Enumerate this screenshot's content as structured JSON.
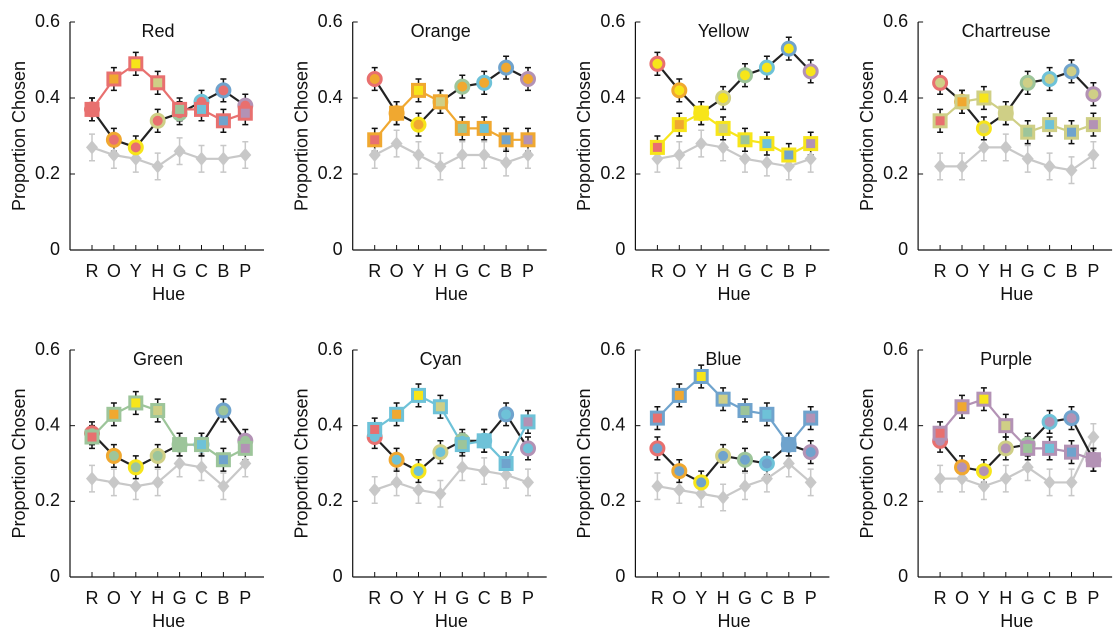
{
  "category_colors": [
    "#e8706f",
    "#f0a830",
    "#f7e51a",
    "#cfcf86",
    "#9dc59a",
    "#6ec2d8",
    "#6fa3cd",
    "#b392b5"
  ],
  "chart_data": [
    {
      "type": "line",
      "title": "Red",
      "xlabel": "Hue",
      "ylabel": "Proportion Chosen",
      "categories": [
        "R",
        "O",
        "Y",
        "H",
        "G",
        "C",
        "B",
        "P"
      ],
      "ylim": [
        0,
        0.6
      ],
      "yticks": [
        0,
        0.2,
        0.4,
        0.6
      ],
      "series": [
        {
          "marker": "diamond",
          "color": "#c8c8c8",
          "error": 0.035,
          "values": [
            0.27,
            0.25,
            0.24,
            0.22,
            0.26,
            0.24,
            0.24,
            0.25
          ]
        },
        {
          "marker": "circle",
          "color": "#222222",
          "error": 0.03,
          "values": [
            0.37,
            0.29,
            0.27,
            0.34,
            0.36,
            0.39,
            0.42,
            0.38
          ]
        },
        {
          "marker": "square",
          "color": "#e8706f",
          "error": 0.03,
          "values": [
            0.37,
            0.45,
            0.49,
            0.44,
            0.37,
            0.37,
            0.34,
            0.36
          ]
        }
      ]
    },
    {
      "type": "line",
      "title": "Orange",
      "xlabel": "Hue",
      "ylabel": "Proportion Chosen",
      "categories": [
        "R",
        "O",
        "Y",
        "H",
        "G",
        "C",
        "B",
        "P"
      ],
      "ylim": [
        0,
        0.6
      ],
      "yticks": [
        0,
        0.2,
        0.4,
        0.6
      ],
      "series": [
        {
          "marker": "diamond",
          "color": "#c8c8c8",
          "error": 0.035,
          "values": [
            0.25,
            0.28,
            0.25,
            0.22,
            0.25,
            0.25,
            0.23,
            0.25
          ]
        },
        {
          "marker": "circle",
          "color": "#222222",
          "error": 0.03,
          "values": [
            0.45,
            0.36,
            0.33,
            0.39,
            0.43,
            0.44,
            0.48,
            0.45
          ]
        },
        {
          "marker": "square",
          "color": "#f0a830",
          "error": 0.03,
          "values": [
            0.29,
            0.36,
            0.42,
            0.39,
            0.32,
            0.32,
            0.29,
            0.29
          ]
        }
      ]
    },
    {
      "type": "line",
      "title": "Yellow",
      "xlabel": "Hue",
      "ylabel": "Proportion Chosen",
      "categories": [
        "R",
        "O",
        "Y",
        "H",
        "G",
        "C",
        "B",
        "P"
      ],
      "ylim": [
        0,
        0.6
      ],
      "yticks": [
        0,
        0.2,
        0.4,
        0.6
      ],
      "series": [
        {
          "marker": "diamond",
          "color": "#c8c8c8",
          "error": 0.035,
          "values": [
            0.24,
            0.25,
            0.28,
            0.27,
            0.24,
            0.23,
            0.22,
            0.24
          ]
        },
        {
          "marker": "circle",
          "color": "#222222",
          "error": 0.03,
          "values": [
            0.49,
            0.42,
            0.36,
            0.4,
            0.46,
            0.48,
            0.53,
            0.47
          ]
        },
        {
          "marker": "square",
          "color": "#f7e51a",
          "error": 0.03,
          "values": [
            0.27,
            0.33,
            0.36,
            0.32,
            0.29,
            0.28,
            0.25,
            0.28
          ]
        }
      ]
    },
    {
      "type": "line",
      "title": "Chartreuse",
      "xlabel": "Hue",
      "ylabel": "Proportion Chosen",
      "categories": [
        "R",
        "O",
        "Y",
        "H",
        "G",
        "C",
        "B",
        "P"
      ],
      "ylim": [
        0,
        0.6
      ],
      "yticks": [
        0,
        0.2,
        0.4,
        0.6
      ],
      "series": [
        {
          "marker": "diamond",
          "color": "#c8c8c8",
          "error": 0.035,
          "values": [
            0.22,
            0.22,
            0.27,
            0.27,
            0.24,
            0.22,
            0.21,
            0.25
          ]
        },
        {
          "marker": "circle",
          "color": "#222222",
          "error": 0.03,
          "values": [
            0.44,
            0.39,
            0.32,
            0.36,
            0.44,
            0.45,
            0.47,
            0.41
          ]
        },
        {
          "marker": "square",
          "color": "#cfcf86",
          "error": 0.03,
          "values": [
            0.34,
            0.39,
            0.4,
            0.36,
            0.31,
            0.33,
            0.31,
            0.33
          ]
        }
      ]
    },
    {
      "type": "line",
      "title": "Green",
      "xlabel": "Hue",
      "ylabel": "Proportion Chosen",
      "categories": [
        "R",
        "O",
        "Y",
        "H",
        "G",
        "C",
        "B",
        "P"
      ],
      "ylim": [
        0,
        0.6
      ],
      "yticks": [
        0,
        0.2,
        0.4,
        0.6
      ],
      "series": [
        {
          "marker": "diamond",
          "color": "#c8c8c8",
          "error": 0.035,
          "values": [
            0.26,
            0.25,
            0.24,
            0.25,
            0.3,
            0.29,
            0.24,
            0.3
          ]
        },
        {
          "marker": "circle",
          "color": "#222222",
          "error": 0.03,
          "values": [
            0.38,
            0.32,
            0.29,
            0.32,
            0.35,
            0.35,
            0.44,
            0.36
          ]
        },
        {
          "marker": "square",
          "color": "#9dc59a",
          "error": 0.03,
          "values": [
            0.37,
            0.43,
            0.46,
            0.44,
            0.35,
            0.35,
            0.31,
            0.34
          ]
        }
      ]
    },
    {
      "type": "line",
      "title": "Cyan",
      "xlabel": "Hue",
      "ylabel": "Proportion Chosen",
      "categories": [
        "R",
        "O",
        "Y",
        "H",
        "G",
        "C",
        "B",
        "P"
      ],
      "ylim": [
        0,
        0.6
      ],
      "yticks": [
        0,
        0.2,
        0.4,
        0.6
      ],
      "series": [
        {
          "marker": "diamond",
          "color": "#c8c8c8",
          "error": 0.035,
          "values": [
            0.23,
            0.25,
            0.23,
            0.22,
            0.29,
            0.28,
            0.27,
            0.25
          ]
        },
        {
          "marker": "circle",
          "color": "#222222",
          "error": 0.03,
          "values": [
            0.37,
            0.31,
            0.28,
            0.33,
            0.36,
            0.36,
            0.43,
            0.34
          ]
        },
        {
          "marker": "square",
          "color": "#6ec2d8",
          "error": 0.03,
          "values": [
            0.39,
            0.43,
            0.48,
            0.45,
            0.35,
            0.36,
            0.3,
            0.41
          ]
        }
      ]
    },
    {
      "type": "line",
      "title": "Blue",
      "xlabel": "Hue",
      "ylabel": "Proportion Chosen",
      "categories": [
        "R",
        "O",
        "Y",
        "H",
        "G",
        "C",
        "B",
        "P"
      ],
      "ylim": [
        0,
        0.6
      ],
      "yticks": [
        0,
        0.2,
        0.4,
        0.6
      ],
      "series": [
        {
          "marker": "diamond",
          "color": "#c8c8c8",
          "error": 0.035,
          "values": [
            0.24,
            0.23,
            0.22,
            0.21,
            0.24,
            0.26,
            0.3,
            0.25
          ]
        },
        {
          "marker": "circle",
          "color": "#222222",
          "error": 0.03,
          "values": [
            0.34,
            0.28,
            0.25,
            0.32,
            0.31,
            0.3,
            0.35,
            0.33
          ]
        },
        {
          "marker": "square",
          "color": "#6fa3cd",
          "error": 0.03,
          "values": [
            0.42,
            0.48,
            0.53,
            0.47,
            0.44,
            0.43,
            0.35,
            0.42
          ]
        }
      ]
    },
    {
      "type": "line",
      "title": "Purple",
      "xlabel": "Hue",
      "ylabel": "Proportion Chosen",
      "categories": [
        "R",
        "O",
        "Y",
        "H",
        "G",
        "C",
        "B",
        "P"
      ],
      "ylim": [
        0,
        0.6
      ],
      "yticks": [
        0,
        0.2,
        0.4,
        0.6
      ],
      "series": [
        {
          "marker": "diamond",
          "color": "#c8c8c8",
          "error": 0.035,
          "values": [
            0.26,
            0.26,
            0.24,
            0.26,
            0.29,
            0.25,
            0.25,
            0.37
          ]
        },
        {
          "marker": "circle",
          "color": "#222222",
          "error": 0.03,
          "values": [
            0.36,
            0.29,
            0.28,
            0.34,
            0.35,
            0.41,
            0.42,
            0.31
          ]
        },
        {
          "marker": "square",
          "color": "#b392b5",
          "error": 0.03,
          "values": [
            0.38,
            0.45,
            0.47,
            0.4,
            0.34,
            0.34,
            0.33,
            0.31
          ]
        }
      ]
    }
  ]
}
